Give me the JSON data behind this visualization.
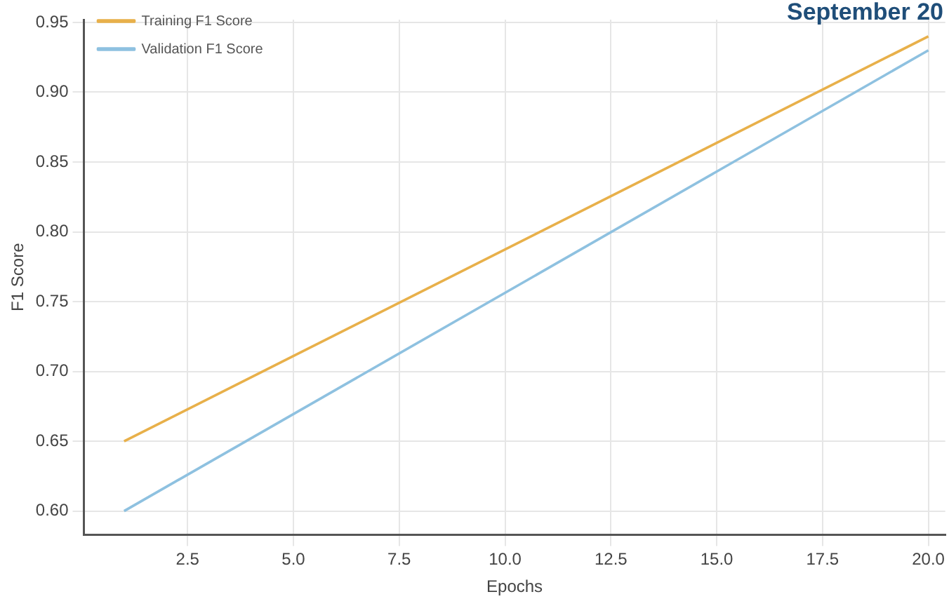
{
  "chart_data": {
    "type": "line",
    "xlabel": "Epochs",
    "ylabel": "F1 Score",
    "annotations": [
      "September 20"
    ],
    "x": [
      1,
      20
    ],
    "series": [
      {
        "name": "Training F1 Score",
        "color": "#e8b04a",
        "values": [
          0.65,
          0.94
        ]
      },
      {
        "name": "Validation F1 Score",
        "color": "#8ec1e0",
        "values": [
          0.6,
          0.93
        ]
      }
    ],
    "xlim": [
      0.05,
      20.4
    ],
    "xticks": [
      {
        "value": 2.5,
        "label": "2.5"
      },
      {
        "value": 5,
        "label": "5.0"
      },
      {
        "value": 7.5,
        "label": "7.5"
      },
      {
        "value": 10,
        "label": "10.0"
      },
      {
        "value": 12.5,
        "label": "12.5"
      },
      {
        "value": 15,
        "label": "15.0"
      },
      {
        "value": 17.5,
        "label": "17.5"
      },
      {
        "value": 20,
        "label": "20.0"
      }
    ],
    "ylim": [
      0.583,
      0.952
    ],
    "yticks": [
      {
        "value": 0.6,
        "label": "0.60"
      },
      {
        "value": 0.65,
        "label": "0.65"
      },
      {
        "value": 0.7,
        "label": "0.70"
      },
      {
        "value": 0.75,
        "label": "0.75"
      },
      {
        "value": 0.8,
        "label": "0.80"
      },
      {
        "value": 0.85,
        "label": "0.85"
      },
      {
        "value": 0.9,
        "label": "0.90"
      },
      {
        "value": 0.95,
        "label": "0.95"
      }
    ],
    "grid": true,
    "legend": "top left",
    "marker": "none",
    "line_style": "solid"
  }
}
